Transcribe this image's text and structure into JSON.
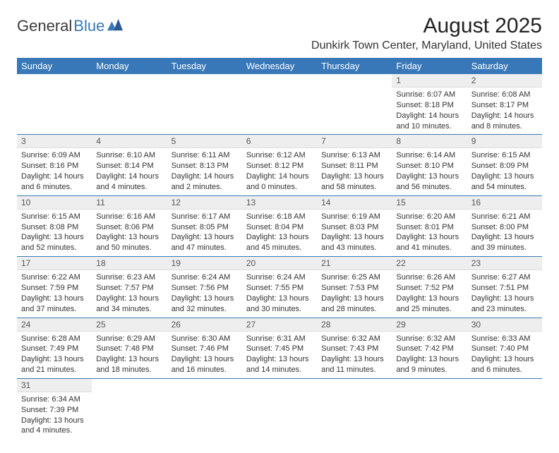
{
  "logo": {
    "text1": "General",
    "text2": "Blue"
  },
  "title": "August 2025",
  "location": "Dunkirk Town Center, Maryland, United States",
  "colors": {
    "header_bg": "#3978b8",
    "header_text": "#ffffff",
    "daynum_bg": "#eeeeee",
    "cell_border": "#3978b8",
    "logo_accent": "#3978b8"
  },
  "typography": {
    "title_fontsize": 30,
    "location_fontsize": 16,
    "dayheader_fontsize": 13,
    "body_fontsize": 11
  },
  "day_headers": [
    "Sunday",
    "Monday",
    "Tuesday",
    "Wednesday",
    "Thursday",
    "Friday",
    "Saturday"
  ],
  "weeks": [
    [
      null,
      null,
      null,
      null,
      null,
      {
        "n": "1",
        "sunrise": "Sunrise: 6:07 AM",
        "sunset": "Sunset: 8:18 PM",
        "daylight": "Daylight: 14 hours and 10 minutes."
      },
      {
        "n": "2",
        "sunrise": "Sunrise: 6:08 AM",
        "sunset": "Sunset: 8:17 PM",
        "daylight": "Daylight: 14 hours and 8 minutes."
      }
    ],
    [
      {
        "n": "3",
        "sunrise": "Sunrise: 6:09 AM",
        "sunset": "Sunset: 8:16 PM",
        "daylight": "Daylight: 14 hours and 6 minutes."
      },
      {
        "n": "4",
        "sunrise": "Sunrise: 6:10 AM",
        "sunset": "Sunset: 8:14 PM",
        "daylight": "Daylight: 14 hours and 4 minutes."
      },
      {
        "n": "5",
        "sunrise": "Sunrise: 6:11 AM",
        "sunset": "Sunset: 8:13 PM",
        "daylight": "Daylight: 14 hours and 2 minutes."
      },
      {
        "n": "6",
        "sunrise": "Sunrise: 6:12 AM",
        "sunset": "Sunset: 8:12 PM",
        "daylight": "Daylight: 14 hours and 0 minutes."
      },
      {
        "n": "7",
        "sunrise": "Sunrise: 6:13 AM",
        "sunset": "Sunset: 8:11 PM",
        "daylight": "Daylight: 13 hours and 58 minutes."
      },
      {
        "n": "8",
        "sunrise": "Sunrise: 6:14 AM",
        "sunset": "Sunset: 8:10 PM",
        "daylight": "Daylight: 13 hours and 56 minutes."
      },
      {
        "n": "9",
        "sunrise": "Sunrise: 6:15 AM",
        "sunset": "Sunset: 8:09 PM",
        "daylight": "Daylight: 13 hours and 54 minutes."
      }
    ],
    [
      {
        "n": "10",
        "sunrise": "Sunrise: 6:15 AM",
        "sunset": "Sunset: 8:08 PM",
        "daylight": "Daylight: 13 hours and 52 minutes."
      },
      {
        "n": "11",
        "sunrise": "Sunrise: 6:16 AM",
        "sunset": "Sunset: 8:06 PM",
        "daylight": "Daylight: 13 hours and 50 minutes."
      },
      {
        "n": "12",
        "sunrise": "Sunrise: 6:17 AM",
        "sunset": "Sunset: 8:05 PM",
        "daylight": "Daylight: 13 hours and 47 minutes."
      },
      {
        "n": "13",
        "sunrise": "Sunrise: 6:18 AM",
        "sunset": "Sunset: 8:04 PM",
        "daylight": "Daylight: 13 hours and 45 minutes."
      },
      {
        "n": "14",
        "sunrise": "Sunrise: 6:19 AM",
        "sunset": "Sunset: 8:03 PM",
        "daylight": "Daylight: 13 hours and 43 minutes."
      },
      {
        "n": "15",
        "sunrise": "Sunrise: 6:20 AM",
        "sunset": "Sunset: 8:01 PM",
        "daylight": "Daylight: 13 hours and 41 minutes."
      },
      {
        "n": "16",
        "sunrise": "Sunrise: 6:21 AM",
        "sunset": "Sunset: 8:00 PM",
        "daylight": "Daylight: 13 hours and 39 minutes."
      }
    ],
    [
      {
        "n": "17",
        "sunrise": "Sunrise: 6:22 AM",
        "sunset": "Sunset: 7:59 PM",
        "daylight": "Daylight: 13 hours and 37 minutes."
      },
      {
        "n": "18",
        "sunrise": "Sunrise: 6:23 AM",
        "sunset": "Sunset: 7:57 PM",
        "daylight": "Daylight: 13 hours and 34 minutes."
      },
      {
        "n": "19",
        "sunrise": "Sunrise: 6:24 AM",
        "sunset": "Sunset: 7:56 PM",
        "daylight": "Daylight: 13 hours and 32 minutes."
      },
      {
        "n": "20",
        "sunrise": "Sunrise: 6:24 AM",
        "sunset": "Sunset: 7:55 PM",
        "daylight": "Daylight: 13 hours and 30 minutes."
      },
      {
        "n": "21",
        "sunrise": "Sunrise: 6:25 AM",
        "sunset": "Sunset: 7:53 PM",
        "daylight": "Daylight: 13 hours and 28 minutes."
      },
      {
        "n": "22",
        "sunrise": "Sunrise: 6:26 AM",
        "sunset": "Sunset: 7:52 PM",
        "daylight": "Daylight: 13 hours and 25 minutes."
      },
      {
        "n": "23",
        "sunrise": "Sunrise: 6:27 AM",
        "sunset": "Sunset: 7:51 PM",
        "daylight": "Daylight: 13 hours and 23 minutes."
      }
    ],
    [
      {
        "n": "24",
        "sunrise": "Sunrise: 6:28 AM",
        "sunset": "Sunset: 7:49 PM",
        "daylight": "Daylight: 13 hours and 21 minutes."
      },
      {
        "n": "25",
        "sunrise": "Sunrise: 6:29 AM",
        "sunset": "Sunset: 7:48 PM",
        "daylight": "Daylight: 13 hours and 18 minutes."
      },
      {
        "n": "26",
        "sunrise": "Sunrise: 6:30 AM",
        "sunset": "Sunset: 7:46 PM",
        "daylight": "Daylight: 13 hours and 16 minutes."
      },
      {
        "n": "27",
        "sunrise": "Sunrise: 6:31 AM",
        "sunset": "Sunset: 7:45 PM",
        "daylight": "Daylight: 13 hours and 14 minutes."
      },
      {
        "n": "28",
        "sunrise": "Sunrise: 6:32 AM",
        "sunset": "Sunset: 7:43 PM",
        "daylight": "Daylight: 13 hours and 11 minutes."
      },
      {
        "n": "29",
        "sunrise": "Sunrise: 6:32 AM",
        "sunset": "Sunset: 7:42 PM",
        "daylight": "Daylight: 13 hours and 9 minutes."
      },
      {
        "n": "30",
        "sunrise": "Sunrise: 6:33 AM",
        "sunset": "Sunset: 7:40 PM",
        "daylight": "Daylight: 13 hours and 6 minutes."
      }
    ],
    [
      {
        "n": "31",
        "sunrise": "Sunrise: 6:34 AM",
        "sunset": "Sunset: 7:39 PM",
        "daylight": "Daylight: 13 hours and 4 minutes."
      },
      null,
      null,
      null,
      null,
      null,
      null
    ]
  ]
}
